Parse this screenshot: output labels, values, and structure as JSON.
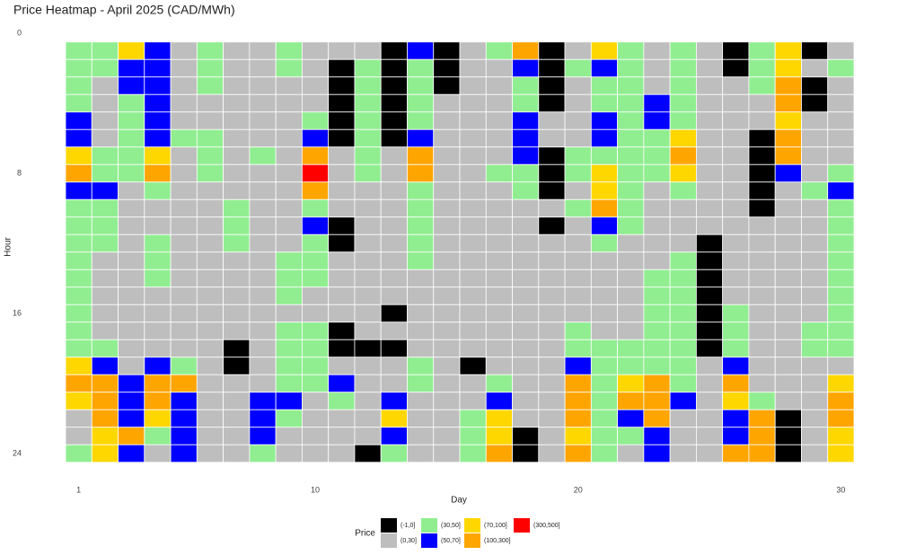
{
  "chart_data": {
    "type": "heatmap",
    "title": "Price Heatmap - April 2025 (CAD/MWh)",
    "x_label": "Day",
    "y_label": "Hour",
    "x": [
      1,
      2,
      3,
      4,
      5,
      6,
      7,
      8,
      9,
      10,
      11,
      12,
      13,
      14,
      15,
      16,
      17,
      18,
      19,
      20,
      21,
      22,
      23,
      24,
      25,
      26,
      27,
      28,
      29,
      30
    ],
    "y": [
      1,
      2,
      3,
      4,
      5,
      6,
      7,
      8,
      9,
      10,
      11,
      12,
      13,
      14,
      15,
      16,
      17,
      18,
      19,
      20,
      21,
      22,
      23,
      24
    ],
    "xlim": [
      0.5,
      30.5
    ],
    "xticks": [
      1,
      10,
      20,
      30
    ],
    "ylim": [
      0,
      24.5
    ],
    "yticks": [
      0,
      8,
      16,
      24
    ],
    "y_reversed": true,
    "legend": {
      "title": "Price",
      "position": "bottom",
      "items": [
        {
          "label": "(-1,0]",
          "color": "#000000"
        },
        {
          "label": "(0,30]",
          "color": "#bebebe"
        },
        {
          "label": "(30,50]",
          "color": "#90ee90"
        },
        {
          "label": "(50,70]",
          "color": "#0000ff"
        },
        {
          "label": "(70,100]",
          "color": "#ffd700"
        },
        {
          "label": "(100,300]",
          "color": "#ffa500"
        },
        {
          "label": "(300,500]",
          "color": "#ff0000"
        }
      ]
    },
    "values": [
      [
        "(30,50]",
        "(30,50]",
        "(70,100]",
        "(50,70]",
        "(0,30]",
        "(30,50]",
        "(0,30]",
        "(0,30]",
        "(30,50]",
        "(0,30]",
        "(0,30]",
        "(0,30]",
        "(-1,0]",
        "(50,70]",
        "(-1,0]",
        "(0,30]",
        "(30,50]",
        "(100,300]",
        "(-1,0]",
        "(0,30]",
        "(70,100]",
        "(30,50]",
        "(0,30]",
        "(30,50]",
        "(0,30]",
        "(-1,0]",
        "(30,50]",
        "(70,100]",
        "(-1,0]",
        "(0,30]"
      ],
      [
        "(30,50]",
        "(30,50]",
        "(50,70]",
        "(50,70]",
        "(0,30]",
        "(30,50]",
        "(0,30]",
        "(0,30]",
        "(30,50]",
        "(0,30]",
        "(-1,0]",
        "(30,50]",
        "(-1,0]",
        "(30,50]",
        "(-1,0]",
        "(0,30]",
        "(0,30]",
        "(50,70]",
        "(-1,0]",
        "(30,50]",
        "(50,70]",
        "(30,50]",
        "(0,30]",
        "(30,50]",
        "(0,30]",
        "(-1,0]",
        "(30,50]",
        "(70,100]",
        "(0,30]",
        "(30,50]"
      ],
      [
        "(30,50]",
        "(0,30]",
        "(50,70]",
        "(50,70]",
        "(0,30]",
        "(30,50]",
        "(0,30]",
        "(0,30]",
        "(0,30]",
        "(0,30]",
        "(-1,0]",
        "(30,50]",
        "(-1,0]",
        "(30,50]",
        "(-1,0]",
        "(0,30]",
        "(0,30]",
        "(30,50]",
        "(-1,0]",
        "(0,30]",
        "(30,50]",
        "(30,50]",
        "(0,30]",
        "(30,50]",
        "(0,30]",
        "(0,30]",
        "(30,50]",
        "(100,300]",
        "(-1,0]",
        "(0,30]"
      ],
      [
        "(30,50]",
        "(0,30]",
        "(30,50]",
        "(50,70]",
        "(0,30]",
        "(0,30]",
        "(0,30]",
        "(0,30]",
        "(0,30]",
        "(0,30]",
        "(-1,0]",
        "(30,50]",
        "(-1,0]",
        "(30,50]",
        "(0,30]",
        "(0,30]",
        "(0,30]",
        "(30,50]",
        "(-1,0]",
        "(0,30]",
        "(30,50]",
        "(30,50]",
        "(50,70]",
        "(30,50]",
        "(0,30]",
        "(0,30]",
        "(0,30]",
        "(100,300]",
        "(-1,0]",
        "(0,30]"
      ],
      [
        "(50,70]",
        "(0,30]",
        "(30,50]",
        "(50,70]",
        "(0,30]",
        "(0,30]",
        "(0,30]",
        "(0,30]",
        "(0,30]",
        "(30,50]",
        "(-1,0]",
        "(30,50]",
        "(-1,0]",
        "(30,50]",
        "(0,30]",
        "(0,30]",
        "(0,30]",
        "(50,70]",
        "(0,30]",
        "(0,30]",
        "(50,70]",
        "(30,50]",
        "(50,70]",
        "(30,50]",
        "(0,30]",
        "(0,30]",
        "(0,30]",
        "(70,100]",
        "(0,30]",
        "(0,30]"
      ],
      [
        "(50,70]",
        "(0,30]",
        "(30,50]",
        "(50,70]",
        "(30,50]",
        "(30,50]",
        "(0,30]",
        "(0,30]",
        "(0,30]",
        "(50,70]",
        "(-1,0]",
        "(30,50]",
        "(-1,0]",
        "(50,70]",
        "(0,30]",
        "(0,30]",
        "(0,30]",
        "(50,70]",
        "(0,30]",
        "(0,30]",
        "(50,70]",
        "(30,50]",
        "(30,50]",
        "(70,100]",
        "(0,30]",
        "(0,30]",
        "(-1,0]",
        "(100,300]",
        "(0,30]",
        "(0,30]"
      ],
      [
        "(70,100]",
        "(30,50]",
        "(30,50]",
        "(70,100]",
        "(0,30]",
        "(30,50]",
        "(0,30]",
        "(30,50]",
        "(0,30]",
        "(100,300]",
        "(0,30]",
        "(30,50]",
        "(0,30]",
        "(100,300]",
        "(0,30]",
        "(0,30]",
        "(0,30]",
        "(50,70]",
        "(-1,0]",
        "(30,50]",
        "(30,50]",
        "(30,50]",
        "(30,50]",
        "(100,300]",
        "(0,30]",
        "(0,30]",
        "(-1,0]",
        "(100,300]",
        "(0,30]",
        "(0,30]"
      ],
      [
        "(100,300]",
        "(30,50]",
        "(30,50]",
        "(100,300]",
        "(0,30]",
        "(30,50]",
        "(0,30]",
        "(0,30]",
        "(0,30]",
        "(300,500]",
        "(0,30]",
        "(30,50]",
        "(0,30]",
        "(100,300]",
        "(0,30]",
        "(0,30]",
        "(30,50]",
        "(30,50]",
        "(-1,0]",
        "(30,50]",
        "(70,100]",
        "(30,50]",
        "(30,50]",
        "(70,100]",
        "(0,30]",
        "(0,30]",
        "(-1,0]",
        "(50,70]",
        "(0,30]",
        "(30,50]"
      ],
      [
        "(50,70]",
        "(50,70]",
        "(0,30]",
        "(30,50]",
        "(0,30]",
        "(0,30]",
        "(0,30]",
        "(0,30]",
        "(0,30]",
        "(100,300]",
        "(0,30]",
        "(0,30]",
        "(0,30]",
        "(30,50]",
        "(0,30]",
        "(0,30]",
        "(0,30]",
        "(30,50]",
        "(-1,0]",
        "(0,30]",
        "(70,100]",
        "(30,50]",
        "(0,30]",
        "(30,50]",
        "(0,30]",
        "(0,30]",
        "(-1,0]",
        "(0,30]",
        "(30,50]",
        "(50,70]"
      ],
      [
        "(30,50]",
        "(30,50]",
        "(0,30]",
        "(0,30]",
        "(0,30]",
        "(0,30]",
        "(30,50]",
        "(0,30]",
        "(0,30]",
        "(30,50]",
        "(0,30]",
        "(0,30]",
        "(0,30]",
        "(30,50]",
        "(0,30]",
        "(0,30]",
        "(0,30]",
        "(0,30]",
        "(0,30]",
        "(30,50]",
        "(100,300]",
        "(30,50]",
        "(0,30]",
        "(0,30]",
        "(0,30]",
        "(0,30]",
        "(-1,0]",
        "(0,30]",
        "(0,30]",
        "(30,50]"
      ],
      [
        "(30,50]",
        "(30,50]",
        "(0,30]",
        "(0,30]",
        "(0,30]",
        "(0,30]",
        "(30,50]",
        "(0,30]",
        "(0,30]",
        "(50,70]",
        "(-1,0]",
        "(0,30]",
        "(0,30]",
        "(30,50]",
        "(0,30]",
        "(0,30]",
        "(0,30]",
        "(0,30]",
        "(-1,0]",
        "(0,30]",
        "(50,70]",
        "(30,50]",
        "(0,30]",
        "(0,30]",
        "(0,30]",
        "(0,30]",
        "(0,30]",
        "(0,30]",
        "(0,30]",
        "(30,50]"
      ],
      [
        "(30,50]",
        "(30,50]",
        "(0,30]",
        "(30,50]",
        "(0,30]",
        "(0,30]",
        "(30,50]",
        "(0,30]",
        "(0,30]",
        "(30,50]",
        "(-1,0]",
        "(0,30]",
        "(0,30]",
        "(30,50]",
        "(0,30]",
        "(0,30]",
        "(0,30]",
        "(0,30]",
        "(0,30]",
        "(0,30]",
        "(30,50]",
        "(0,30]",
        "(0,30]",
        "(0,30]",
        "(-1,0]",
        "(0,30]",
        "(0,30]",
        "(0,30]",
        "(0,30]",
        "(30,50]"
      ],
      [
        "(30,50]",
        "(0,30]",
        "(0,30]",
        "(30,50]",
        "(0,30]",
        "(0,30]",
        "(0,30]",
        "(0,30]",
        "(30,50]",
        "(30,50]",
        "(0,30]",
        "(0,30]",
        "(0,30]",
        "(30,50]",
        "(0,30]",
        "(0,30]",
        "(0,30]",
        "(0,30]",
        "(0,30]",
        "(0,30]",
        "(0,30]",
        "(0,30]",
        "(0,30]",
        "(30,50]",
        "(-1,0]",
        "(0,30]",
        "(0,30]",
        "(0,30]",
        "(0,30]",
        "(30,50]"
      ],
      [
        "(30,50]",
        "(0,30]",
        "(0,30]",
        "(30,50]",
        "(0,30]",
        "(0,30]",
        "(0,30]",
        "(0,30]",
        "(30,50]",
        "(30,50]",
        "(0,30]",
        "(0,30]",
        "(0,30]",
        "(0,30]",
        "(0,30]",
        "(0,30]",
        "(0,30]",
        "(0,30]",
        "(0,30]",
        "(0,30]",
        "(0,30]",
        "(0,30]",
        "(30,50]",
        "(30,50]",
        "(-1,0]",
        "(0,30]",
        "(0,30]",
        "(0,30]",
        "(0,30]",
        "(30,50]"
      ],
      [
        "(30,50]",
        "(0,30]",
        "(0,30]",
        "(0,30]",
        "(0,30]",
        "(0,30]",
        "(0,30]",
        "(0,30]",
        "(30,50]",
        "(0,30]",
        "(0,30]",
        "(0,30]",
        "(0,30]",
        "(0,30]",
        "(0,30]",
        "(0,30]",
        "(0,30]",
        "(0,30]",
        "(0,30]",
        "(0,30]",
        "(0,30]",
        "(0,30]",
        "(30,50]",
        "(30,50]",
        "(-1,0]",
        "(0,30]",
        "(0,30]",
        "(0,30]",
        "(0,30]",
        "(30,50]"
      ],
      [
        "(30,50]",
        "(0,30]",
        "(0,30]",
        "(0,30]",
        "(0,30]",
        "(0,30]",
        "(0,30]",
        "(0,30]",
        "(0,30]",
        "(0,30]",
        "(0,30]",
        "(0,30]",
        "(-1,0]",
        "(0,30]",
        "(0,30]",
        "(0,30]",
        "(0,30]",
        "(0,30]",
        "(0,30]",
        "(0,30]",
        "(0,30]",
        "(0,30]",
        "(30,50]",
        "(30,50]",
        "(-1,0]",
        "(30,50]",
        "(0,30]",
        "(0,30]",
        "(0,30]",
        "(30,50]"
      ],
      [
        "(30,50]",
        "(0,30]",
        "(0,30]",
        "(0,30]",
        "(0,30]",
        "(0,30]",
        "(0,30]",
        "(0,30]",
        "(30,50]",
        "(30,50]",
        "(-1,0]",
        "(0,30]",
        "(0,30]",
        "(0,30]",
        "(0,30]",
        "(0,30]",
        "(0,30]",
        "(0,30]",
        "(0,30]",
        "(30,50]",
        "(0,30]",
        "(0,30]",
        "(30,50]",
        "(30,50]",
        "(-1,0]",
        "(30,50]",
        "(0,30]",
        "(0,30]",
        "(30,50]",
        "(30,50]"
      ],
      [
        "(30,50]",
        "(30,50]",
        "(0,30]",
        "(0,30]",
        "(0,30]",
        "(0,30]",
        "(-1,0]",
        "(0,30]",
        "(30,50]",
        "(30,50]",
        "(-1,0]",
        "(-1,0]",
        "(-1,0]",
        "(0,30]",
        "(0,30]",
        "(0,30]",
        "(0,30]",
        "(0,30]",
        "(0,30]",
        "(30,50]",
        "(30,50]",
        "(30,50]",
        "(30,50]",
        "(30,50]",
        "(-1,0]",
        "(30,50]",
        "(0,30]",
        "(0,30]",
        "(30,50]",
        "(30,50]"
      ],
      [
        "(70,100]",
        "(50,70]",
        "(0,30]",
        "(50,70]",
        "(30,50]",
        "(0,30]",
        "(-1,0]",
        "(0,30]",
        "(30,50]",
        "(30,50]",
        "(0,30]",
        "(0,30]",
        "(0,30]",
        "(30,50]",
        "(0,30]",
        "(-1,0]",
        "(0,30]",
        "(0,30]",
        "(0,30]",
        "(50,70]",
        "(30,50]",
        "(30,50]",
        "(30,50]",
        "(30,50]",
        "(0,30]",
        "(50,70]",
        "(0,30]",
        "(0,30]",
        "(0,30]",
        "(0,30]"
      ],
      [
        "(100,300]",
        "(100,300]",
        "(50,70]",
        "(100,300]",
        "(100,300]",
        "(0,30]",
        "(0,30]",
        "(0,30]",
        "(30,50]",
        "(30,50]",
        "(50,70]",
        "(0,30]",
        "(0,30]",
        "(30,50]",
        "(0,30]",
        "(0,30]",
        "(30,50]",
        "(0,30]",
        "(0,30]",
        "(100,300]",
        "(30,50]",
        "(70,100]",
        "(100,300]",
        "(30,50]",
        "(0,30]",
        "(100,300]",
        "(0,30]",
        "(0,30]",
        "(0,30]",
        "(70,100]"
      ],
      [
        "(70,100]",
        "(100,300]",
        "(50,70]",
        "(100,300]",
        "(50,70]",
        "(0,30]",
        "(0,30]",
        "(50,70]",
        "(50,70]",
        "(0,30]",
        "(30,50]",
        "(0,30]",
        "(50,70]",
        "(0,30]",
        "(0,30]",
        "(0,30]",
        "(50,70]",
        "(0,30]",
        "(0,30]",
        "(100,300]",
        "(30,50]",
        "(100,300]",
        "(100,300]",
        "(50,70]",
        "(0,30]",
        "(70,100]",
        "(30,50]",
        "(0,30]",
        "(0,30]",
        "(100,300]"
      ],
      [
        "(0,30]",
        "(100,300]",
        "(50,70]",
        "(70,100]",
        "(50,70]",
        "(0,30]",
        "(0,30]",
        "(50,70]",
        "(30,50]",
        "(0,30]",
        "(0,30]",
        "(0,30]",
        "(70,100]",
        "(0,30]",
        "(0,30]",
        "(30,50]",
        "(70,100]",
        "(0,30]",
        "(0,30]",
        "(100,300]",
        "(30,50]",
        "(50,70]",
        "(100,300]",
        "(0,30]",
        "(0,30]",
        "(50,70]",
        "(100,300]",
        "(-1,0]",
        "(0,30]",
        "(100,300]"
      ],
      [
        "(0,30]",
        "(70,100]",
        "(100,300]",
        "(30,50]",
        "(50,70]",
        "(0,30]",
        "(0,30]",
        "(50,70]",
        "(0,30]",
        "(0,30]",
        "(0,30]",
        "(0,30]",
        "(50,70]",
        "(0,30]",
        "(0,30]",
        "(30,50]",
        "(70,100]",
        "(-1,0]",
        "(0,30]",
        "(70,100]",
        "(30,50]",
        "(30,50]",
        "(50,70]",
        "(0,30]",
        "(0,30]",
        "(50,70]",
        "(100,300]",
        "(-1,0]",
        "(0,30]",
        "(70,100]"
      ],
      [
        "(30,50]",
        "(70,100]",
        "(50,70]",
        "(0,30]",
        "(50,70]",
        "(0,30]",
        "(0,30]",
        "(30,50]",
        "(0,30]",
        "(0,30]",
        "(0,30]",
        "(-1,0]",
        "(30,50]",
        "(0,30]",
        "(0,30]",
        "(30,50]",
        "(100,300]",
        "(-1,0]",
        "(0,30]",
        "(100,300]",
        "(30,50]",
        "(0,30]",
        "(50,70]",
        "(0,30]",
        "(0,30]",
        "(100,300]",
        "(100,300]",
        "(-1,0]",
        "(0,30]",
        "(70,100]"
      ]
    ]
  }
}
